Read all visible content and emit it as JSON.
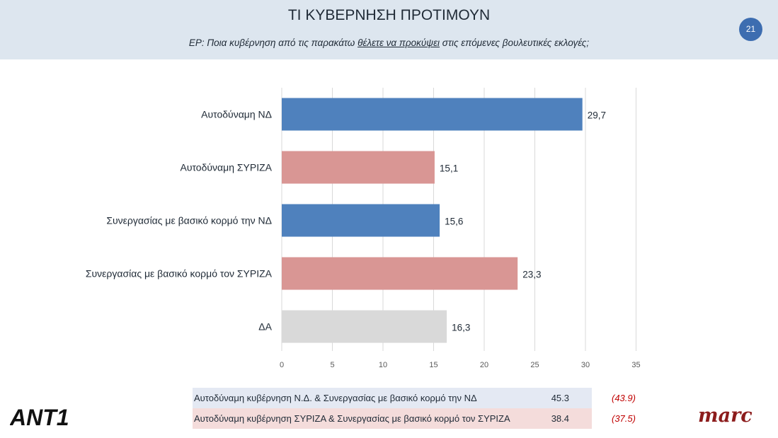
{
  "title": "ΤΙ ΚΥΒΕΡΝΗΣΗ ΠΡΟΤΙΜΟΥΝ",
  "question": {
    "prefix": "ΕΡ: Ποια κυβέρνηση από τις παρακάτω ",
    "underlined": "θέλετε να προκύψει",
    "suffix": " στις επόμενες βουλευτικές εκλογές;"
  },
  "page_number": "21",
  "chart_data": {
    "type": "bar",
    "orientation": "horizontal",
    "categories": [
      "Αυτοδύναμη ΝΔ",
      "Αυτοδύναμη ΣΥΡΙΖΑ",
      "Συνεργασίας με βασικό κορμό την ΝΔ",
      "Συνεργασίας με βασικό κορμό τον ΣΥΡΙΖΑ",
      "ΔΑ"
    ],
    "values": [
      29.7,
      15.1,
      15.6,
      23.3,
      16.3
    ],
    "value_labels": [
      "29,7",
      "15,1",
      "15,6",
      "23,3",
      "16,3"
    ],
    "bar_colors": [
      "#4f81bd",
      "#d99694",
      "#4f81bd",
      "#d99694",
      "#d9d9d9"
    ],
    "xlim": [
      0,
      35
    ],
    "xticks": [
      0,
      5,
      10,
      15,
      20,
      25,
      30,
      35
    ],
    "grid": true
  },
  "summary": [
    {
      "label": "Αυτοδύναμη κυβέρνηση Ν.Δ. & Συνεργασίας με βασικό κορμό την ΝΔ",
      "value": "45.3",
      "previous": "(43.9)",
      "color": "#e4e9f3"
    },
    {
      "label": "Αυτοδύναμη κυβέρνηση ΣΥΡΙΖΑ & Συνεργασίας με βασικό κορμό τον ΣΥΡΙΖΑ",
      "value": "38.4",
      "previous": "(37.5)",
      "color": "#f4dcdb"
    }
  ],
  "logos": {
    "left": "ANT1",
    "right": "marc"
  },
  "colors": {
    "header_bg": "#dde6ef",
    "badge": "#3d6db0",
    "previous_text": "#c00000"
  }
}
